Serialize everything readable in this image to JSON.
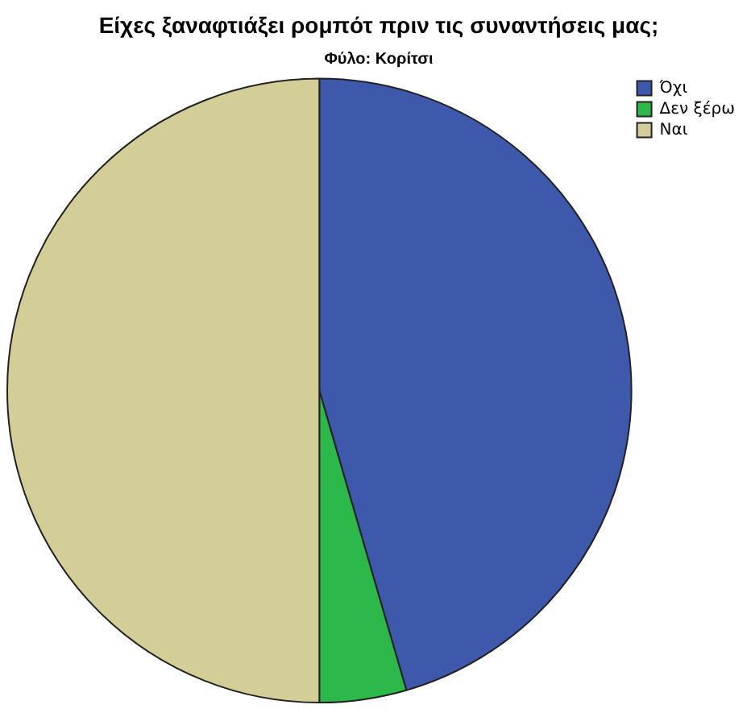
{
  "chart_data": {
    "type": "pie",
    "title": "Είχες ξαναφτιάξει ρομπότ πριν τις συναντήσεις μας;",
    "subtitle": "Φύλο: Κορίτσι",
    "categories": [
      "Όχι",
      "Δεν ξέρω",
      "Ναι"
    ],
    "values": [
      45.5,
      4.5,
      50
    ],
    "colors": [
      "#3e58ac",
      "#2db84a",
      "#d3ce97"
    ],
    "legend": "top right"
  }
}
